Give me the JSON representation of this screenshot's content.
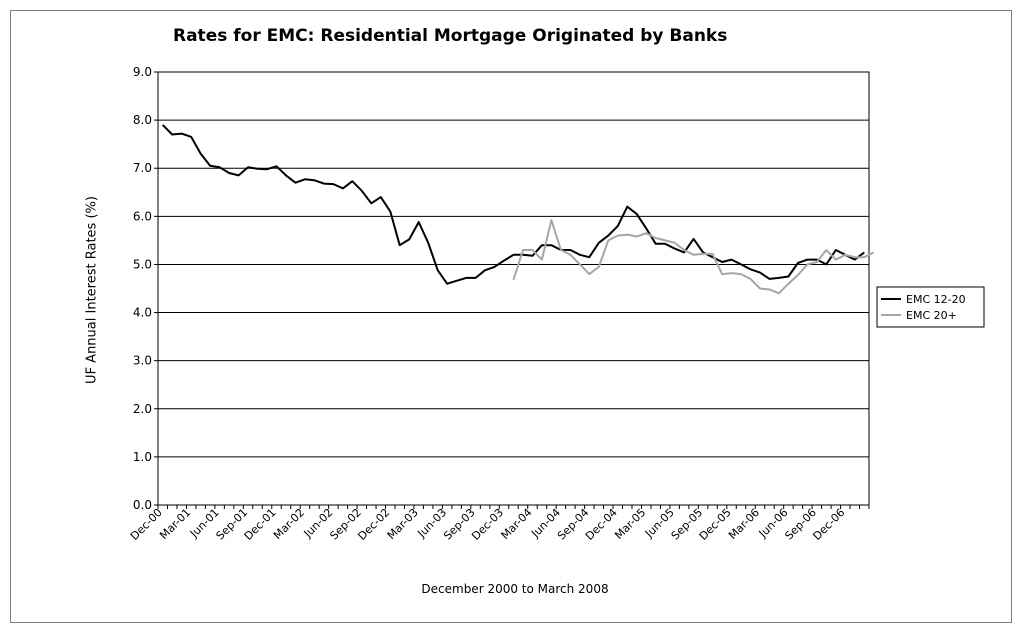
{
  "chart_data": {
    "type": "line",
    "title": "Rates for EMC: Residential Mortgage Originated by Banks",
    "xlabel": "December 2000 to March 2008",
    "ylabel": "UF Annual Interest Rates (%)",
    "ylim": [
      0,
      9
    ],
    "yticks": [
      "0.0",
      "1.0",
      "2.0",
      "3.0",
      "4.0",
      "5.0",
      "6.0",
      "7.0",
      "8.0",
      "9.0"
    ],
    "x_tick_labels": [
      "Dec-00",
      "Mar-01",
      "Jun-01",
      "Sep-01",
      "Dec-01",
      "Mar-02",
      "Jun-02",
      "Sep-02",
      "Dec-02",
      "Mar-03",
      "Jun-03",
      "Sep-03",
      "Dec-03",
      "Mar-04",
      "Jun-04",
      "Sep-04",
      "Dec-04",
      "Mar-05",
      "Jun-05",
      "Sep-05",
      "Dec-05",
      "Mar-06",
      "Jun-06",
      "Sep-06",
      "Dec-06"
    ],
    "grid": "horizontal",
    "legend": "right",
    "series": [
      {
        "name": "EMC 12-20",
        "color": "#000000",
        "start_month_index": 0,
        "values": [
          7.9,
          7.7,
          7.72,
          7.65,
          7.3,
          7.05,
          7.02,
          6.9,
          6.85,
          7.02,
          6.99,
          6.98,
          7.04,
          6.85,
          6.7,
          6.77,
          6.75,
          6.68,
          6.67,
          6.58,
          6.73,
          6.53,
          6.27,
          6.4,
          6.1,
          5.4,
          5.52,
          5.88,
          5.45,
          4.88,
          4.6,
          4.66,
          4.72,
          4.72,
          4.88,
          4.95,
          5.08,
          5.2,
          5.2,
          5.18,
          5.4,
          5.4,
          5.3,
          5.3,
          5.2,
          5.15,
          5.45,
          5.6,
          5.8,
          6.2,
          6.05,
          5.75,
          5.43,
          5.43,
          5.33,
          5.25,
          5.53,
          5.25,
          5.15,
          5.05,
          5.1,
          5.0,
          4.9,
          4.83,
          4.7,
          4.72,
          4.75,
          5.03,
          5.1,
          5.1,
          5.0,
          5.3,
          5.2,
          5.1,
          5.25
        ]
      },
      {
        "name": "EMC 20+",
        "color": "#a6a6a6",
        "start_month_index": 37,
        "values": [
          4.68,
          5.3,
          5.3,
          5.1,
          5.92,
          5.3,
          5.2,
          5.0,
          4.8,
          4.95,
          5.5,
          5.6,
          5.62,
          5.58,
          5.65,
          5.55,
          5.5,
          5.45,
          5.3,
          5.2,
          5.22,
          5.22,
          4.8,
          4.82,
          4.8,
          4.7,
          4.5,
          4.48,
          4.4,
          4.6,
          4.78,
          5.0,
          5.05,
          5.3,
          5.1,
          5.2,
          5.15,
          5.15,
          5.25
        ]
      }
    ]
  }
}
